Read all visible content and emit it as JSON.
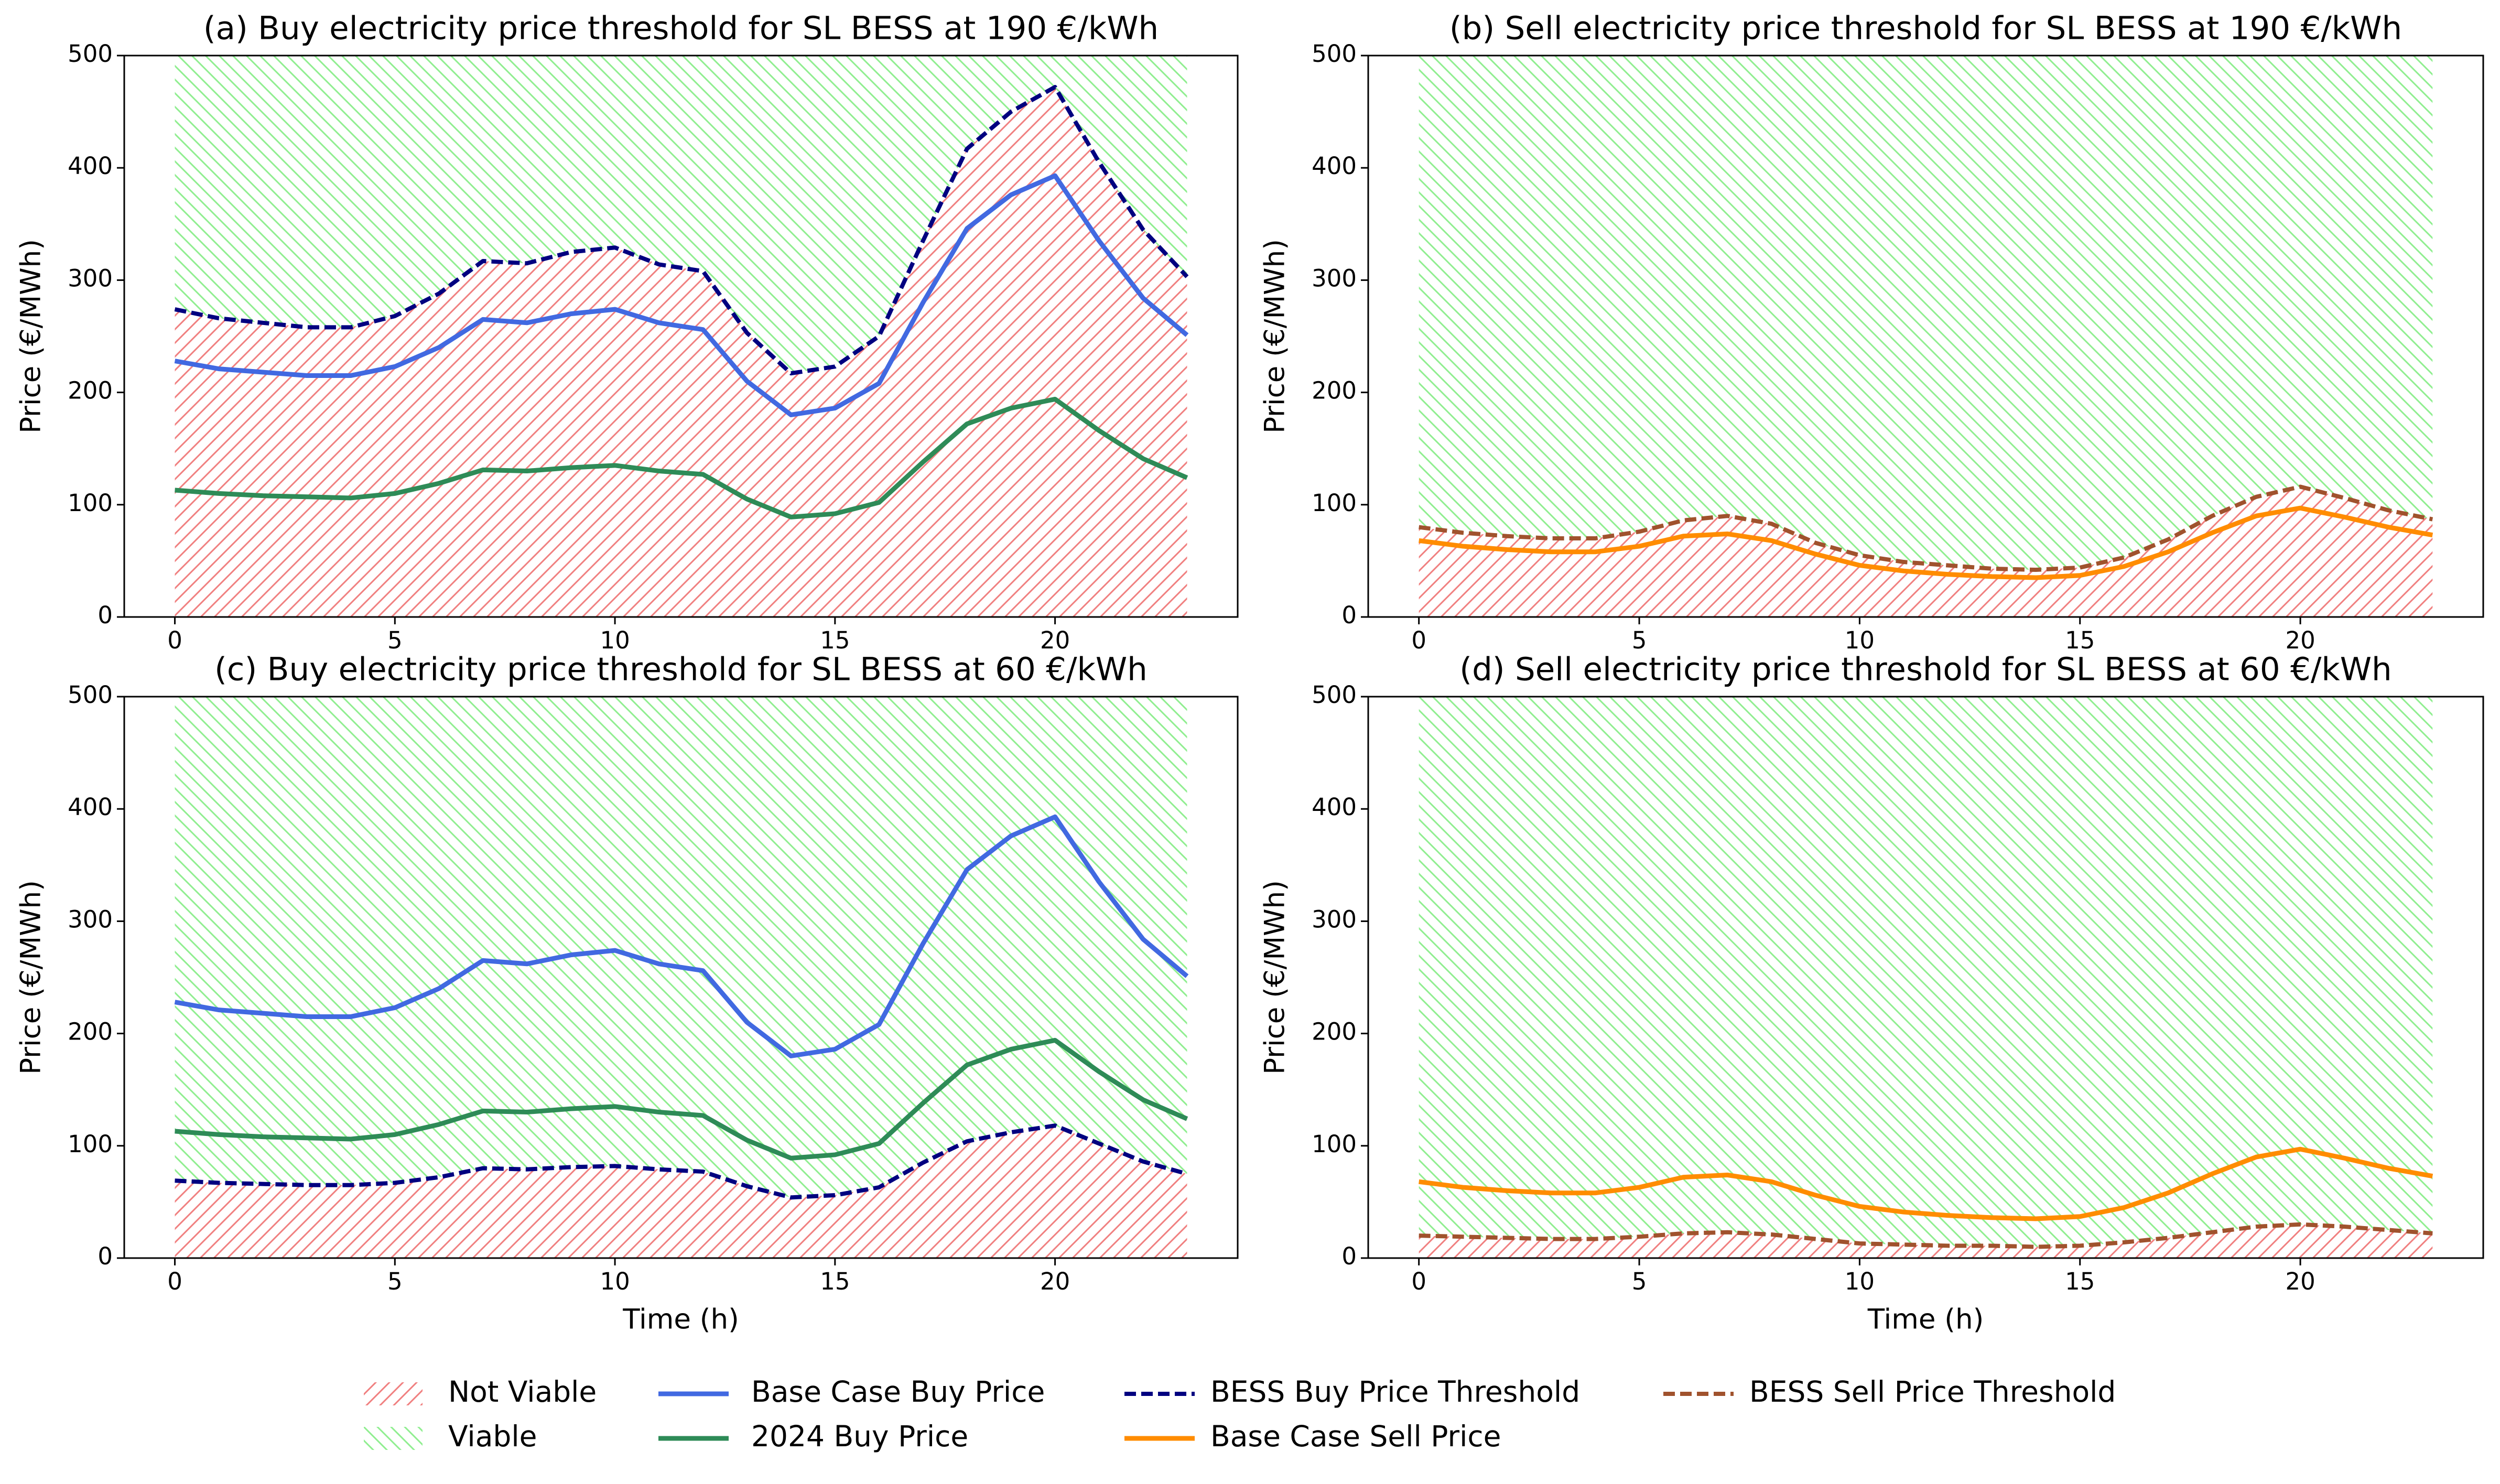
{
  "hatch": {
    "below": {
      "name": "Not Viable",
      "color": "#f08080"
    },
    "above": {
      "name": "Viable",
      "color": "#90ee90"
    }
  },
  "chart_data": [
    {
      "type": "line",
      "title": "(a) Buy electricity price threshold for SL BESS at 190 €/kWh",
      "ylabel": "Price (€/MWh)",
      "x": [
        0,
        1,
        2,
        3,
        4,
        5,
        6,
        7,
        8,
        9,
        10,
        11,
        12,
        13,
        14,
        15,
        16,
        17,
        18,
        19,
        20,
        21,
        22,
        23
      ],
      "xlim": [
        -1.15,
        24.15
      ],
      "xticks": [
        0,
        5,
        10,
        15,
        20
      ],
      "ylim": [
        0,
        500
      ],
      "yticks": [
        0,
        100,
        200,
        300,
        400,
        500
      ],
      "series": [
        {
          "name": "Base Case Buy Price",
          "color": "#4169e1",
          "dashed": false,
          "values": [
            228,
            221,
            218,
            215,
            215,
            223,
            240,
            265,
            262,
            270,
            274,
            262,
            256,
            210,
            180,
            186,
            208,
            280,
            346,
            376,
            393,
            335,
            284,
            251
          ]
        },
        {
          "name": "2024 Buy Price",
          "color": "#2e8b57",
          "dashed": false,
          "values": [
            113,
            110,
            108,
            107,
            106,
            110,
            119,
            131,
            130,
            133,
            135,
            130,
            127,
            105,
            89,
            92,
            102,
            138,
            172,
            186,
            194,
            166,
            141,
            124
          ]
        },
        {
          "name": "BESS Buy Price Threshold",
          "color": "#000080",
          "dashed": true,
          "hatch_boundary": true,
          "values": [
            274,
            266,
            262,
            258,
            258,
            268,
            288,
            317,
            315,
            325,
            329,
            314,
            308,
            253,
            217,
            223,
            250,
            335,
            417,
            450,
            472,
            405,
            345,
            303
          ]
        }
      ]
    },
    {
      "type": "line",
      "title": "(b) Sell electricity price threshold for SL BESS at 190 €/kWh",
      "ylabel": "Price (€/MWh)",
      "x": [
        0,
        1,
        2,
        3,
        4,
        5,
        6,
        7,
        8,
        9,
        10,
        11,
        12,
        13,
        14,
        15,
        16,
        17,
        18,
        19,
        20,
        21,
        22,
        23
      ],
      "xlim": [
        -1.15,
        24.15
      ],
      "xticks": [
        0,
        5,
        10,
        15,
        20
      ],
      "ylim": [
        0,
        500
      ],
      "yticks": [
        0,
        100,
        200,
        300,
        400,
        500
      ],
      "series": [
        {
          "name": "BESS Sell Price Threshold",
          "color": "#a0522d",
          "dashed": true,
          "hatch_boundary": true,
          "values": [
            80,
            75,
            72,
            70,
            70,
            76,
            86,
            90,
            83,
            66,
            55,
            49,
            46,
            43,
            42,
            44,
            53,
            69,
            90,
            107,
            116,
            106,
            95,
            87
          ]
        },
        {
          "name": "Base Case Sell Price",
          "color": "#ff8c00",
          "dashed": false,
          "values": [
            68,
            63,
            60,
            58,
            58,
            63,
            72,
            74,
            68,
            56,
            46,
            41,
            38,
            36,
            35,
            37,
            45,
            58,
            75,
            90,
            97,
            89,
            80,
            73
          ]
        }
      ]
    },
    {
      "type": "line",
      "title": "(c) Buy electricity price threshold for SL BESS at 60 €/kWh",
      "ylabel": "Price (€/MWh)",
      "xlabel": "Time (h)",
      "x": [
        0,
        1,
        2,
        3,
        4,
        5,
        6,
        7,
        8,
        9,
        10,
        11,
        12,
        13,
        14,
        15,
        16,
        17,
        18,
        19,
        20,
        21,
        22,
        23
      ],
      "xlim": [
        -1.15,
        24.15
      ],
      "xticks": [
        0,
        5,
        10,
        15,
        20
      ],
      "ylim": [
        0,
        500
      ],
      "yticks": [
        0,
        100,
        200,
        300,
        400,
        500
      ],
      "series": [
        {
          "name": "Base Case Buy Price",
          "color": "#4169e1",
          "dashed": false,
          "values": [
            228,
            221,
            218,
            215,
            215,
            223,
            240,
            265,
            262,
            270,
            274,
            262,
            256,
            210,
            180,
            186,
            208,
            280,
            346,
            376,
            393,
            335,
            284,
            251
          ]
        },
        {
          "name": "2024 Buy Price",
          "color": "#2e8b57",
          "dashed": false,
          "values": [
            113,
            110,
            108,
            107,
            106,
            110,
            119,
            131,
            130,
            133,
            135,
            130,
            127,
            105,
            89,
            92,
            102,
            138,
            172,
            186,
            194,
            166,
            141,
            124
          ]
        },
        {
          "name": "BESS Buy Price Threshold",
          "color": "#000080",
          "dashed": true,
          "hatch_boundary": true,
          "values": [
            69,
            67,
            66,
            65,
            65,
            67,
            72,
            80,
            79,
            81,
            82,
            79,
            77,
            64,
            54,
            56,
            63,
            85,
            104,
            112,
            118,
            102,
            86,
            75
          ]
        }
      ]
    },
    {
      "type": "line",
      "title": "(d) Sell electricity price threshold for SL BESS at 60 €/kWh",
      "ylabel": "Price (€/MWh)",
      "xlabel": "Time (h)",
      "x": [
        0,
        1,
        2,
        3,
        4,
        5,
        6,
        7,
        8,
        9,
        10,
        11,
        12,
        13,
        14,
        15,
        16,
        17,
        18,
        19,
        20,
        21,
        22,
        23
      ],
      "xlim": [
        -1.15,
        24.15
      ],
      "xticks": [
        0,
        5,
        10,
        15,
        20
      ],
      "ylim": [
        0,
        500
      ],
      "yticks": [
        0,
        100,
        200,
        300,
        400,
        500
      ],
      "series": [
        {
          "name": "BESS Sell Price Threshold",
          "color": "#a0522d",
          "dashed": true,
          "hatch_boundary": true,
          "values": [
            20,
            19,
            18,
            17,
            17,
            19,
            22,
            23,
            21,
            17,
            13,
            12,
            11,
            11,
            10,
            11,
            14,
            18,
            23,
            28,
            30,
            28,
            25,
            22
          ]
        },
        {
          "name": "Base Case Sell Price",
          "color": "#ff8c00",
          "dashed": false,
          "values": [
            68,
            63,
            60,
            58,
            58,
            63,
            72,
            74,
            68,
            56,
            46,
            41,
            38,
            36,
            35,
            37,
            45,
            58,
            75,
            90,
            97,
            89,
            80,
            73
          ]
        }
      ]
    }
  ]
}
